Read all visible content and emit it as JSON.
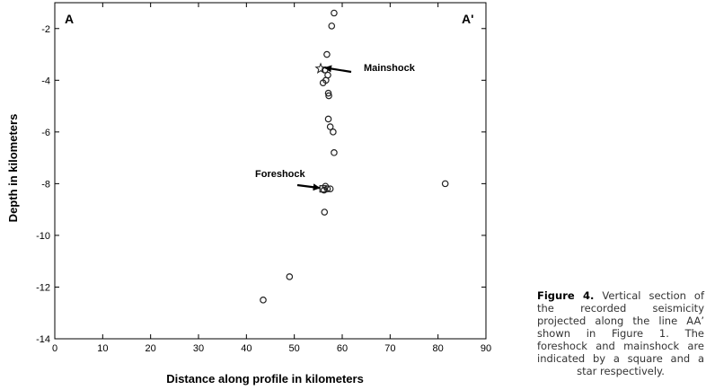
{
  "chart_data": {
    "type": "scatter",
    "xlabel": "Distance along profile in kilometers",
    "ylabel": "Depth in kilometers",
    "xlim": [
      0,
      90
    ],
    "ylim": [
      -14,
      -1
    ],
    "x_ticks": [
      0,
      10,
      20,
      30,
      40,
      50,
      60,
      70,
      80,
      90
    ],
    "y_ticks": [
      -2,
      -4,
      -6,
      -8,
      -10,
      -12,
      -14
    ],
    "grid": false,
    "corner_labels": {
      "left": "A",
      "right": "A'"
    },
    "points": [
      {
        "x": 58.3,
        "y": -1.4
      },
      {
        "x": 57.8,
        "y": -1.9
      },
      {
        "x": 56.8,
        "y": -3.0
      },
      {
        "x": 56.4,
        "y": -3.6
      },
      {
        "x": 57.0,
        "y": -3.8
      },
      {
        "x": 56.6,
        "y": -4.0
      },
      {
        "x": 56.0,
        "y": -4.1
      },
      {
        "x": 57.1,
        "y": -4.5
      },
      {
        "x": 57.2,
        "y": -4.6
      },
      {
        "x": 57.1,
        "y": -5.5
      },
      {
        "x": 57.5,
        "y": -5.8
      },
      {
        "x": 58.1,
        "y": -6.0
      },
      {
        "x": 58.3,
        "y": -6.8
      },
      {
        "x": 56.5,
        "y": -8.1
      },
      {
        "x": 56.9,
        "y": -8.2
      },
      {
        "x": 57.5,
        "y": -8.2
      },
      {
        "x": 56.2,
        "y": -8.25
      },
      {
        "x": 81.5,
        "y": -8.0
      },
      {
        "x": 56.3,
        "y": -9.1
      },
      {
        "x": 49.0,
        "y": -11.6
      },
      {
        "x": 43.5,
        "y": -12.5
      }
    ],
    "mainshock": {
      "x": 55.5,
      "y": -3.55,
      "label": "Mainshock"
    },
    "foreshock": {
      "x": 56.0,
      "y": -8.2,
      "label": "Foreshock"
    }
  },
  "caption": {
    "label": "Figure 4.",
    "text": " Vertical section of the recorded seismicity projected along the line AA’ shown in Figure 1. The foreshock and mainshock are indicated by a square and a star respectively."
  }
}
